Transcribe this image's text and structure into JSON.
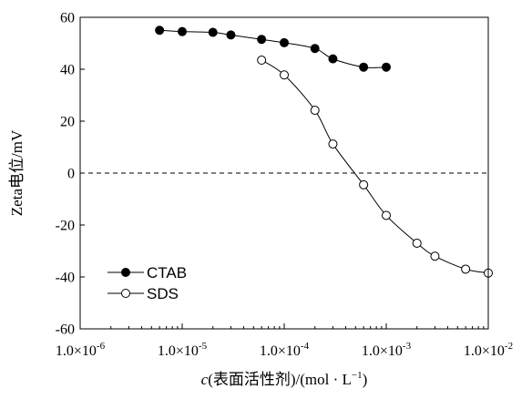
{
  "chart_data": {
    "type": "scatter",
    "xscale": "log",
    "xlim": [
      1e-06,
      0.01
    ],
    "ylim": [
      -60,
      60
    ],
    "yticks": [
      60,
      40,
      20,
      0,
      -20,
      -40,
      -60
    ],
    "xtick_labels": [
      {
        "base": "1.0×10",
        "exp": "-6"
      },
      {
        "base": "1.0×10",
        "exp": "-5"
      },
      {
        "base": "1.0×10",
        "exp": "-4"
      },
      {
        "base": "1.0×10",
        "exp": "-3"
      },
      {
        "base": "1.0×10",
        "exp": "-2"
      }
    ],
    "ylabel": "Zeta电位/mV",
    "xlabel": {
      "italic": "c",
      "rest": "(表面活性剂)/(mol · L",
      "sup": "−1",
      "close": ")"
    },
    "zero_line": true,
    "legend_position": "bottom-left",
    "series": [
      {
        "name": "CTAB",
        "marker": "filled-circle",
        "color": "#000000",
        "x": [
          6e-06,
          1e-05,
          2e-05,
          3e-05,
          6e-05,
          0.0001,
          0.0002,
          0.0003,
          0.0006,
          0.001
        ],
        "y": [
          55,
          54.5,
          54.2,
          53.2,
          51.5,
          50.2,
          48,
          44,
          40.8,
          40.8
        ]
      },
      {
        "name": "SDS",
        "marker": "open-circle",
        "color": "#000000",
        "x": [
          6e-05,
          0.0001,
          0.0002,
          0.0003,
          0.0006,
          0.001,
          0.002,
          0.003,
          0.006,
          0.01
        ],
        "y": [
          43.5,
          37.8,
          24.2,
          11.2,
          -4.5,
          -16.3,
          -27,
          -32,
          -37,
          -38.5
        ]
      }
    ]
  }
}
